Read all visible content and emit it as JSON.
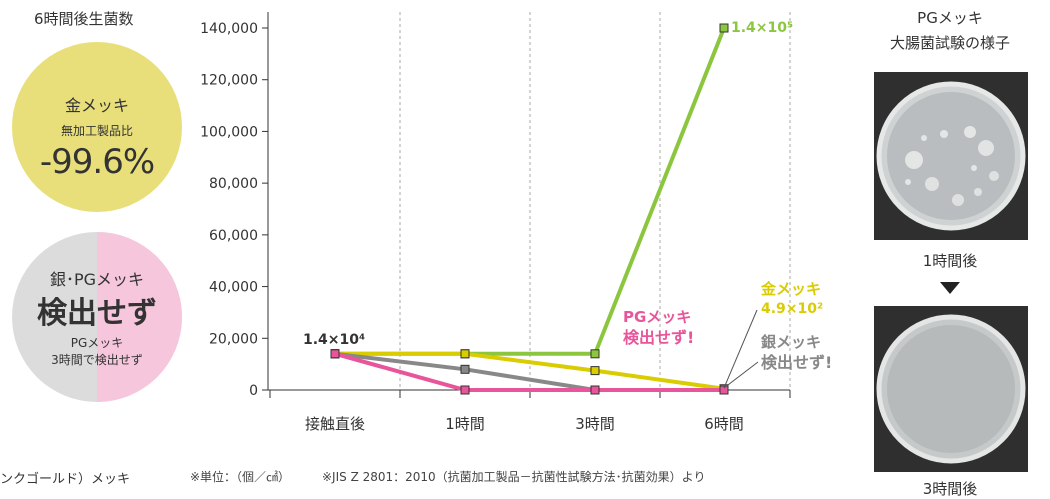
{
  "side": {
    "title": "6時間後生菌数",
    "gold": {
      "name": "金メッキ",
      "sub": "無加工製品比",
      "value": "-99.6%"
    },
    "silver_pg": {
      "name": "銀･PGメッキ",
      "result": "検出せず",
      "note1": "PGメッキ",
      "note2": "3時間で検出せず"
    }
  },
  "chart_data": {
    "type": "line",
    "categories": [
      "接触直後",
      "1時間",
      "3時間",
      "6時間"
    ],
    "ylim": [
      0,
      140000
    ],
    "yticks": [
      0,
      20000,
      40000,
      60000,
      80000,
      100000,
      120000,
      140000
    ],
    "ytick_labels": [
      "0",
      "20,000",
      "40,000",
      "60,000",
      "80,000",
      "100,000",
      "120,000",
      "140,000"
    ],
    "grid": "vertical dashed",
    "series": [
      {
        "key": "untreated",
        "color": "#8cc63f",
        "values": [
          14000,
          14000,
          14000,
          140000
        ]
      },
      {
        "key": "gold",
        "color": "#d9cc00",
        "values": [
          14000,
          14000,
          7500,
          490
        ]
      },
      {
        "key": "silver",
        "color": "#888888",
        "values": [
          14000,
          8000,
          0,
          0
        ]
      },
      {
        "key": "pg",
        "color": "#e8559a",
        "values": [
          14000,
          0,
          0,
          0
        ]
      }
    ],
    "annotations": {
      "start": "1.4×10⁴",
      "untreated_end": "1.4×10⁵",
      "pg_line1": "PGメッキ",
      "pg_line2": "検出せず!",
      "gold_line1": "金メッキ",
      "gold_line2": "4.9×10²",
      "silver_line1": "銀メッキ",
      "silver_line2": "検出せず!"
    }
  },
  "photos": {
    "title_line1": "PGメッキ",
    "title_line2": "大腸菌試験の様子",
    "label_1h": "1時間後",
    "label_3h": "3時間後"
  },
  "footer": {
    "left": "ンクゴールド）メッキ",
    "unit": "※単位：（個／㎠）",
    "source": "※JIS Z 2801：2010（抗菌加工製品－抗菌性試験方法･抗菌効果）より"
  }
}
